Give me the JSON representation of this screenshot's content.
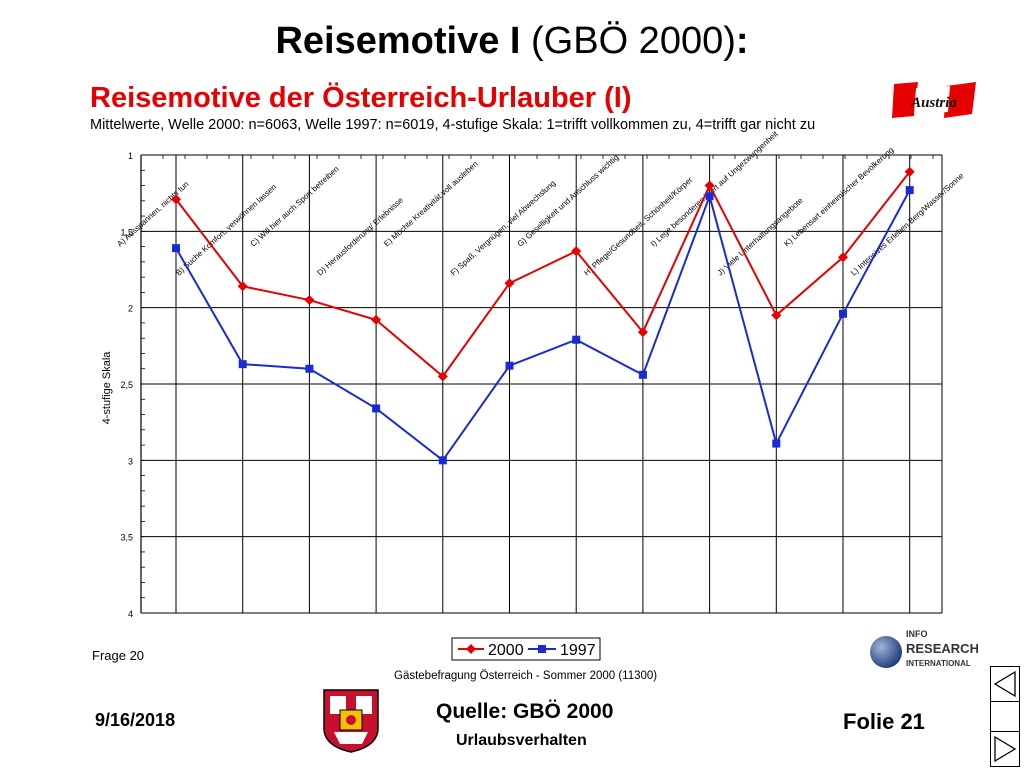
{
  "slide": {
    "title_bold": "Reisemotive I",
    "title_rest": " (GBÖ 2000)",
    "title_colon": ":"
  },
  "chart_heading": "Reisemotive der Österreich-Urlauber (I)",
  "chart_subtitle": "Mittelwerte, Welle 2000: n=6063, Welle 1997: n=6019, 4-stufige Skala: 1=trifft vollkommen zu, 4=trifft gar nicht zu",
  "austria_logo_text": "Austria",
  "info_logo": {
    "line1": "INFO",
    "line2": "RESEARCH",
    "line3": "INTERNATIONAL"
  },
  "frage": "Frage 20",
  "survey_note": "Gästebefragung Österreich - Sommer 2000 (11300)",
  "footer": {
    "date": "9/16/2018",
    "source": "Quelle: GBÖ 2000",
    "sub": "Urlaubsverhalten",
    "folie": "Folie 21"
  },
  "colors": {
    "series_2000": "#e60000",
    "series_1997": "#1a2bd6",
    "heading": "#e60000"
  },
  "chart_data": {
    "type": "line",
    "ylabel": "4-stufige Skala",
    "ylim": [
      1,
      4
    ],
    "y_inverted": true,
    "y_ticks": [
      "1",
      "1,5",
      "2",
      "2,5",
      "3",
      "3,5",
      "4"
    ],
    "grid": true,
    "legend_position": "bottom-center",
    "categories": [
      "A) Ausspannen, nichts tun",
      "B) Suche Komfort, verwöhnen lassen",
      "C) Will hier auch Sport betreiben",
      "D) Herausforderung/ Erlebnisse",
      "E) Möchte Kreativität voll ausleben",
      "F) Spaß, Vergnügen, viel Abwechslung",
      "G) Geselligkeit und Anschluss wichtig",
      "H) Pflege/Gesundheit, Schönheit/Körper",
      "I) Lege besonderen Wert auf Ungezwungenheit",
      "J) Viele Unterhaltungsangebote",
      "K) Lebensart einheimischer Bevölkerung",
      "L) Intensives Erleben Berg/Wasser/Sonne"
    ],
    "series": [
      {
        "name": "2000",
        "color": "#e60000",
        "marker": "diamond",
        "values": [
          1.29,
          1.86,
          1.95,
          2.08,
          2.45,
          1.84,
          1.63,
          2.16,
          1.2,
          2.05,
          1.67,
          1.11
        ]
      },
      {
        "name": "1997",
        "color": "#1a2bd6",
        "marker": "square",
        "values": [
          1.61,
          2.37,
          2.4,
          2.66,
          3.0,
          2.38,
          2.21,
          2.44,
          1.27,
          2.89,
          2.04,
          1.23
        ]
      }
    ]
  }
}
